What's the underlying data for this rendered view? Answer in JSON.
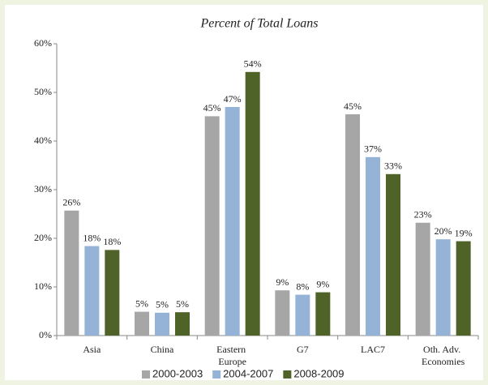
{
  "chart_data": {
    "type": "bar",
    "title": "Percent of  Total Loans",
    "categories": [
      "Asia",
      "China",
      "Eastern Europe",
      "G7",
      "LAC7",
      "Oth. Adv. Economies"
    ],
    "series": [
      {
        "name": "2000-2003",
        "color": "#a6a6a6",
        "values": [
          25.7,
          4.9,
          45.1,
          9.3,
          45.5,
          23.2
        ],
        "value_labels": [
          "26%",
          "5%",
          "45%",
          "9%",
          "45%",
          "23%"
        ]
      },
      {
        "name": "2004-2007",
        "color": "#95b3d7",
        "values": [
          18.4,
          4.7,
          47.0,
          8.4,
          36.7,
          19.8
        ],
        "value_labels": [
          "18%",
          "5%",
          "47%",
          "8%",
          "37%",
          "20%"
        ]
      },
      {
        "name": "2008-2009",
        "color": "#4f6228",
        "values": [
          17.6,
          4.8,
          54.2,
          8.9,
          33.2,
          19.4
        ],
        "value_labels": [
          "18%",
          "5%",
          "54%",
          "9%",
          "33%",
          "19%"
        ]
      }
    ],
    "ylim": [
      0,
      60
    ],
    "yticks": [
      {
        "value": 0,
        "label": "0%"
      },
      {
        "value": 10,
        "label": "10%"
      },
      {
        "value": 20,
        "label": "20%"
      },
      {
        "value": 30,
        "label": "30%"
      },
      {
        "value": 40,
        "label": "40%"
      },
      {
        "value": 50,
        "label": "50%"
      },
      {
        "value": 60,
        "label": "60%"
      }
    ],
    "grid": false,
    "legend": "bottom"
  }
}
